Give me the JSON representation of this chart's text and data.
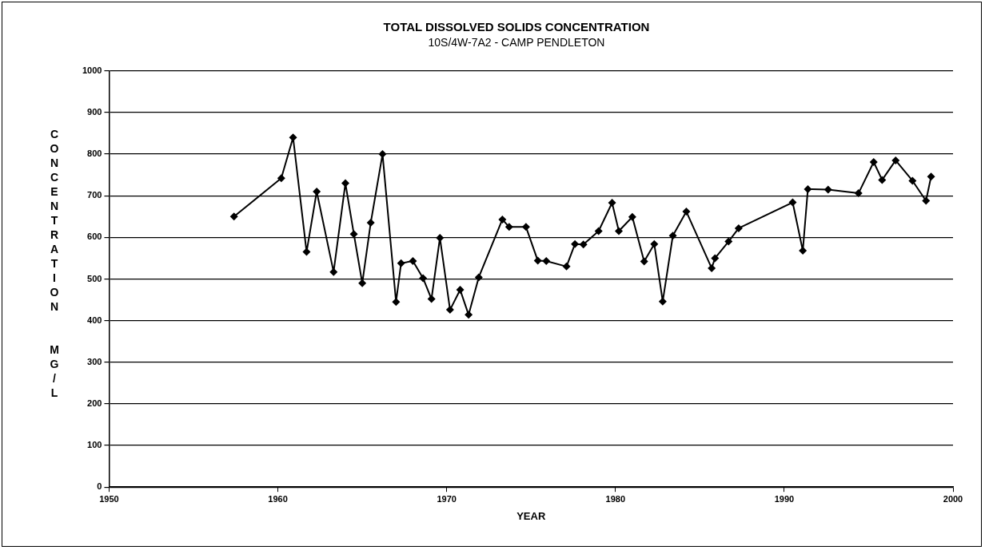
{
  "chart_data": {
    "type": "line",
    "title": "TOTAL DISSOLVED SOLIDS CONCENTRATION",
    "subtitle": "10S/4W-7A2 - CAMP PENDLETON",
    "xlabel": "YEAR",
    "ylabel": "CONCENTRATION  MG/L",
    "x": [
      1957.4,
      1960.2,
      1960.9,
      1961.7,
      1962.3,
      1963.3,
      1964.0,
      1964.5,
      1965.0,
      1965.5,
      1966.2,
      1967.0,
      1967.3,
      1968.0,
      1968.6,
      1969.1,
      1969.6,
      1970.2,
      1970.8,
      1971.3,
      1971.9,
      1973.3,
      1973.7,
      1974.7,
      1975.4,
      1975.9,
      1977.1,
      1977.6,
      1978.1,
      1979.0,
      1979.8,
      1980.2,
      1981.0,
      1981.7,
      1982.3,
      1982.8,
      1983.4,
      1984.2,
      1985.7,
      1985.9,
      1986.7,
      1987.3,
      1990.5,
      1991.1,
      1991.4,
      1992.6,
      1994.4,
      1995.3,
      1995.8,
      1996.6,
      1997.6,
      1998.4,
      1998.7
    ],
    "series": [
      {
        "color": "#000000",
        "values": [
          650,
          742,
          840,
          565,
          710,
          517,
          730,
          608,
          490,
          635,
          800,
          445,
          538,
          543,
          502,
          452,
          599,
          426,
          474,
          414,
          504,
          643,
          625,
          625,
          544,
          543,
          530,
          584,
          583,
          615,
          683,
          615,
          649,
          542,
          584,
          446,
          604,
          662,
          526,
          550,
          590,
          622,
          684,
          568,
          716,
          715,
          706,
          781,
          738,
          785,
          736,
          688,
          746
        ]
      }
    ],
    "xlim": [
      1950,
      2000
    ],
    "xticks": [
      1950,
      1960,
      1970,
      1980,
      1990,
      2000
    ],
    "ylim": [
      0,
      1000
    ],
    "yticks": [
      0,
      100,
      200,
      300,
      400,
      500,
      600,
      700,
      800,
      900,
      1000
    ],
    "grid": "y",
    "legend": false,
    "marker": "diamond",
    "line_style": "solid"
  }
}
